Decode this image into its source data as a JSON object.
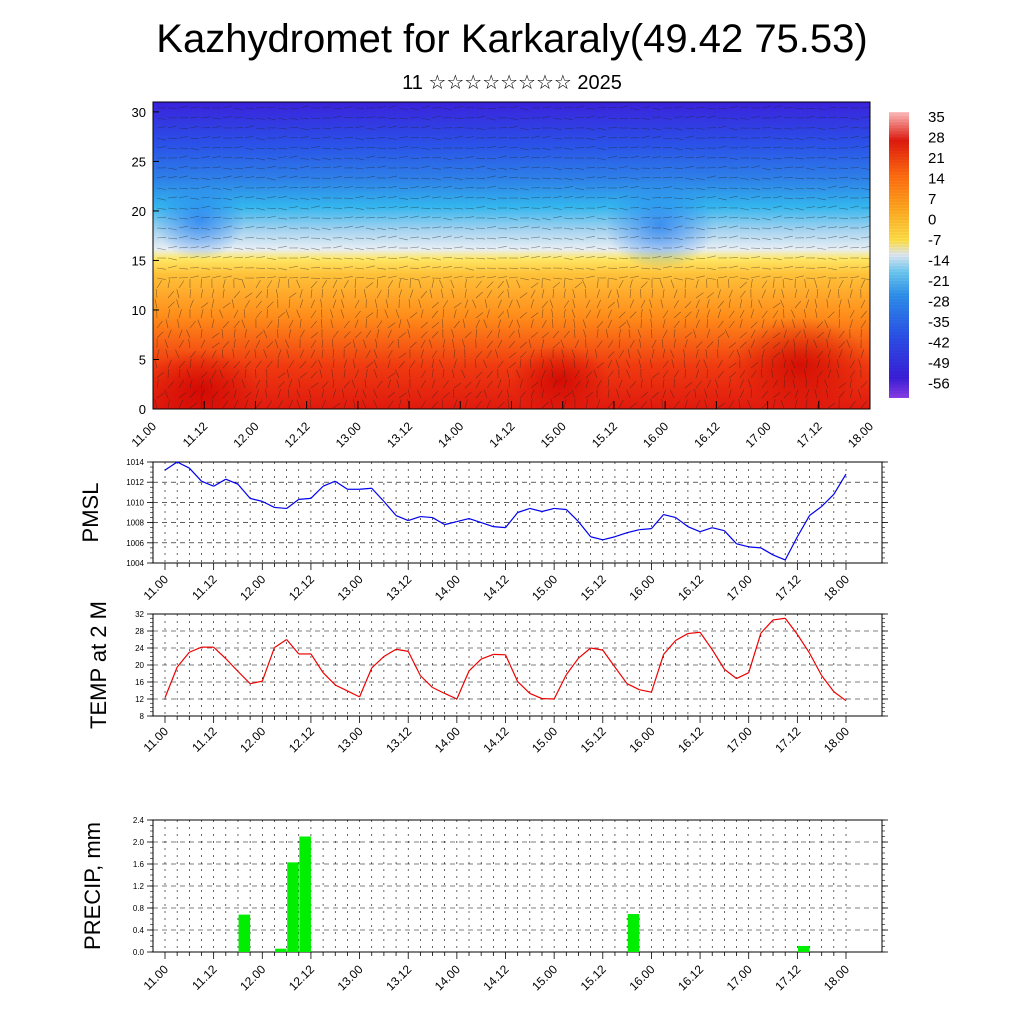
{
  "header": {
    "title": "Kazhydromet for Karkaraly(49.42 75.53)",
    "subtitle": "11 ☆☆☆☆☆☆☆☆ 2025"
  },
  "time_labels": [
    "11.00",
    "11.12",
    "12.00",
    "12.12",
    "13.00",
    "13.12",
    "14.00",
    "14.12",
    "15.00",
    "15.12",
    "16.00",
    "16.12",
    "17.00",
    "17.12",
    "18.00"
  ],
  "chart_data": [
    {
      "type": "heatmap",
      "name": "vertical-cross-section",
      "y_ticks": [
        0,
        5,
        10,
        15,
        20,
        25,
        30
      ],
      "ylim": [
        0,
        31
      ],
      "colorbar_labels": [
        "35",
        "28",
        "21",
        "14",
        "7",
        "0",
        "-7",
        "-14",
        "-21",
        "-28",
        "-35",
        "-42",
        "-49",
        "-56"
      ],
      "colors": {
        "hot": "#e01a0e",
        "warm": "#ff8c1a",
        "yellow": "#ffe04a",
        "pale": "#dfe8f4",
        "cyan": "#33b5ee",
        "blue": "#2a52e8",
        "deep": "#3a1ed8",
        "violet": "#8a3ee6"
      }
    },
    {
      "type": "line",
      "ylabel": "PMSL",
      "ylim": [
        1004,
        1014
      ],
      "y_ticks": [
        1004,
        1006,
        1008,
        1010,
        1012,
        1014
      ],
      "color": "#0000ee",
      "values": [
        1013.2,
        1014,
        1013.4,
        1012.1,
        1011.6,
        1012.3,
        1011.8,
        1010.4,
        1010.1,
        1009.5,
        1009.4,
        1010.3,
        1010.4,
        1011.6,
        1012.1,
        1011.3,
        1011.3,
        1011.4,
        1010.1,
        1008.7,
        1008.2,
        1008.6,
        1008.5,
        1007.8,
        1008.1,
        1008.4,
        1008,
        1007.6,
        1007.5,
        1009,
        1009.4,
        1009.1,
        1009.4,
        1009.3,
        1008.1,
        1006.6,
        1006.3,
        1006.6,
        1007,
        1007.3,
        1007.4,
        1008.8,
        1008.5,
        1007.6,
        1007.1,
        1007.5,
        1007.2,
        1005.9,
        1005.6,
        1005.5,
        1004.8,
        1004.3,
        1006.6,
        1008.7,
        1009.6,
        1010.8,
        1012.8
      ]
    },
    {
      "type": "line",
      "ylabel": "TEMP at 2 M",
      "ylim": [
        8,
        32
      ],
      "y_ticks": [
        8,
        12,
        16,
        20,
        24,
        28,
        32
      ],
      "color": "#ee0000",
      "values": [
        12.3,
        19.5,
        23,
        24.2,
        24.2,
        21.5,
        18.5,
        15.6,
        16.2,
        24.1,
        26,
        22.6,
        22.6,
        18.2,
        15.3,
        13.9,
        12.5,
        19.3,
        22,
        23.7,
        23.2,
        17.5,
        14.7,
        13.3,
        12,
        18.6,
        21.4,
        22.5,
        22.4,
        16.1,
        13.3,
        12.1,
        12,
        17.7,
        21.6,
        24,
        23.5,
        19.5,
        15.6,
        14.2,
        13.6,
        22.5,
        25.8,
        27.4,
        27.7,
        23.6,
        19,
        16.8,
        18.2,
        27.5,
        30.6,
        31,
        27.2,
        22.8,
        17.5,
        13.7,
        11.6
      ]
    },
    {
      "type": "bar",
      "ylabel": "PRECIP, mm",
      "ylim": [
        0,
        2.4
      ],
      "y_ticks": [
        "0.0",
        "0.4",
        "0.8",
        "1.2",
        "1.6",
        "2.0",
        "2.4"
      ],
      "color": "#00ee00",
      "values": [
        0,
        0,
        0,
        0,
        0,
        0,
        0,
        0.68,
        0,
        0,
        0.06,
        1.63,
        2.1,
        0,
        0,
        0,
        0,
        0,
        0,
        0,
        0,
        0,
        0,
        0,
        0,
        0,
        0,
        0,
        0,
        0,
        0,
        0,
        0,
        0,
        0,
        0,
        0,
        0,
        0,
        0.69,
        0,
        0,
        0,
        0,
        0,
        0,
        0,
        0,
        0,
        0,
        0,
        0,
        0,
        0.11,
        0,
        0,
        0
      ]
    }
  ]
}
